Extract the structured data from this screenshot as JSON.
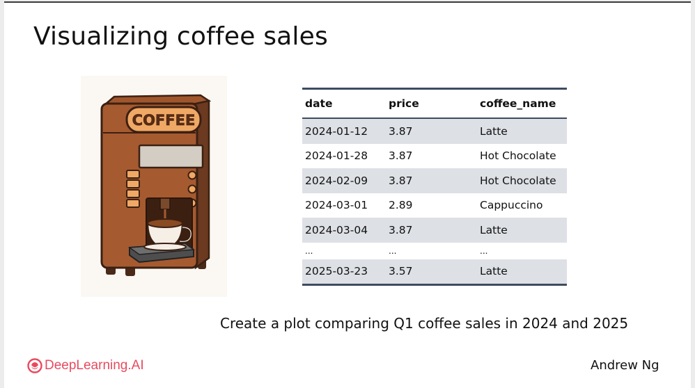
{
  "slide": {
    "title": "Visualizing coffee sales",
    "illustration": {
      "sign_text": "COFFEE",
      "icon": "coffee-machine-icon"
    },
    "table": {
      "columns": [
        "date",
        "price",
        "coffee_name"
      ],
      "rows": [
        [
          "2024-01-12",
          "3.87",
          "Latte"
        ],
        [
          "2024-01-28",
          "3.87",
          "Hot Chocolate"
        ],
        [
          "2024-02-09",
          "3.87",
          "Hot Chocolate"
        ],
        [
          "2024-03-01",
          "2.89",
          "Cappuccino"
        ],
        [
          "2024-03-04",
          "3.87",
          "Latte"
        ],
        [
          "...",
          "...",
          "..."
        ],
        [
          "2025-03-23",
          "3.57",
          "Latte"
        ]
      ]
    },
    "caption": "Create a plot comparing Q1 coffee sales in 2024 and 2025",
    "brand": {
      "name": "DeepLearning.AI",
      "logo_icon": "deeplearning-ai-logo-icon",
      "color": "#e84a5f"
    },
    "author": "Andrew Ng"
  }
}
